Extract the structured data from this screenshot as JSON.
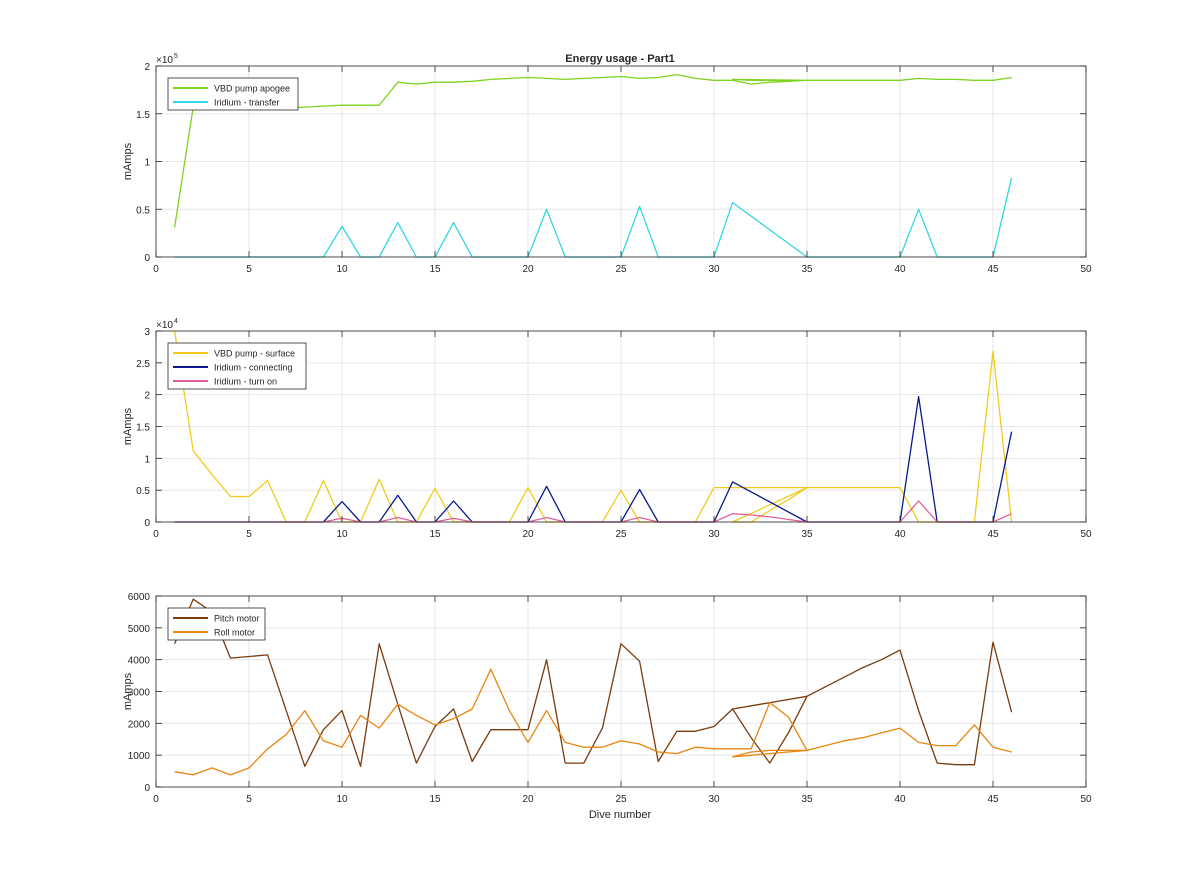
{
  "figure": {
    "title": "Energy usage - Part1",
    "xlabel": "Dive number"
  },
  "chart_data": [
    {
      "type": "line",
      "title": "Energy usage - Part1",
      "xlabel": "",
      "ylabel": "mAmps",
      "xlim": [
        0,
        50
      ],
      "ylim": [
        0,
        200000
      ],
      "xticks": [
        0,
        5,
        10,
        15,
        20,
        25,
        30,
        35,
        40,
        45,
        50
      ],
      "yticks": [
        0,
        50000,
        100000,
        150000,
        200000
      ],
      "ytick_labels": [
        "0",
        "0.5",
        "1",
        "1.5",
        "2"
      ],
      "exponent_label": "×10",
      "exponent_power": "5",
      "grid": true,
      "legend_position": "top-left",
      "series": [
        {
          "name": "VBD pump apogee",
          "color": "#7ed321",
          "x": [
            1,
            2,
            3,
            4,
            5,
            6,
            7,
            8,
            9,
            10,
            11,
            12,
            13,
            14,
            15,
            16,
            17,
            18,
            19,
            20,
            21,
            22,
            23,
            24,
            25,
            26,
            27,
            28,
            29,
            30,
            31,
            32,
            33,
            34,
            35,
            31,
            32,
            33,
            34,
            35,
            36,
            37,
            38,
            39,
            40,
            41,
            42,
            43,
            44,
            45,
            46
          ],
          "y": [
            31000,
            157000,
            158000,
            157000,
            157000,
            157000,
            156000,
            157000,
            158000,
            159000,
            159000,
            159000,
            183000,
            181000,
            183000,
            183000,
            184000,
            186000,
            187000,
            188000,
            187000,
            186000,
            187000,
            188000,
            189000,
            187000,
            188000,
            191000,
            187000,
            185000,
            185000,
            181000,
            183000,
            184000,
            185000,
            186000,
            185000,
            185000,
            184000,
            185000,
            185000,
            185000,
            185000,
            185000,
            185000,
            187000,
            186000,
            186000,
            185000,
            185000,
            188000
          ]
        },
        {
          "name": "Iridium - transfer",
          "color": "#33d6e6",
          "x": [
            1,
            2,
            3,
            4,
            5,
            6,
            7,
            8,
            9,
            10,
            11,
            12,
            13,
            14,
            15,
            16,
            17,
            18,
            19,
            20,
            21,
            22,
            23,
            24,
            25,
            26,
            27,
            28,
            29,
            30,
            31,
            35,
            36,
            37,
            38,
            39,
            40,
            41,
            42,
            43,
            44,
            45,
            46
          ],
          "y": [
            0,
            0,
            0,
            0,
            0,
            0,
            0,
            0,
            0,
            32000,
            0,
            0,
            36000,
            0,
            0,
            36000,
            0,
            0,
            0,
            0,
            50000,
            0,
            0,
            0,
            0,
            53000,
            0,
            0,
            0,
            0,
            57000,
            0,
            0,
            0,
            0,
            0,
            0,
            50000,
            0,
            0,
            0,
            0,
            83000
          ]
        }
      ]
    },
    {
      "type": "line",
      "title": "",
      "xlabel": "",
      "ylabel": "mAmps",
      "xlim": [
        0,
        50
      ],
      "ylim": [
        0,
        30000
      ],
      "xticks": [
        0,
        5,
        10,
        15,
        20,
        25,
        30,
        35,
        40,
        45,
        50
      ],
      "yticks": [
        0,
        5000,
        10000,
        15000,
        20000,
        25000,
        30000
      ],
      "ytick_labels": [
        "0",
        "0.5",
        "1",
        "1.5",
        "2",
        "2.5",
        "3"
      ],
      "exponent_label": "×10",
      "exponent_power": "4",
      "grid": true,
      "legend_position": "top-left",
      "series": [
        {
          "name": "VBD pump - surface",
          "color": "#f2cc1c",
          "x": [
            1,
            2,
            3,
            4,
            5,
            6,
            7,
            8,
            9,
            10,
            11,
            12,
            13,
            14,
            15,
            16,
            17,
            18,
            19,
            20,
            21,
            22,
            23,
            24,
            25,
            26,
            27,
            28,
            29,
            30,
            31,
            32,
            33,
            34,
            35,
            31,
            32,
            33,
            34,
            35,
            36,
            37,
            38,
            39,
            40,
            41,
            42,
            43,
            44,
            45,
            46
          ],
          "y": [
            30000,
            11200,
            7500,
            4000,
            4000,
            6500,
            0,
            0,
            6500,
            0,
            0,
            6700,
            0,
            0,
            5300,
            0,
            0,
            0,
            0,
            5400,
            0,
            0,
            0,
            0,
            5000,
            0,
            0,
            0,
            0,
            5400,
            5400,
            5400,
            5400,
            5400,
            5400,
            0,
            0,
            1800,
            3500,
            5400,
            5400,
            5400,
            5400,
            5400,
            5400,
            0,
            0,
            0,
            0,
            26800,
            0
          ]
        },
        {
          "name": "Iridium - connecting",
          "color": "#0a1a8c",
          "x": [
            1,
            2,
            3,
            4,
            5,
            6,
            7,
            8,
            9,
            10,
            11,
            12,
            13,
            14,
            15,
            16,
            17,
            18,
            19,
            20,
            21,
            22,
            23,
            24,
            25,
            26,
            27,
            28,
            29,
            30,
            31,
            35,
            36,
            37,
            38,
            39,
            40,
            41,
            42,
            43,
            44,
            45,
            46
          ],
          "y": [
            0,
            0,
            0,
            0,
            0,
            0,
            0,
            0,
            0,
            3200,
            0,
            0,
            4200,
            0,
            0,
            3300,
            0,
            0,
            0,
            0,
            5600,
            0,
            0,
            0,
            0,
            5100,
            0,
            0,
            0,
            0,
            6300,
            0,
            0,
            0,
            0,
            0,
            0,
            19700,
            0,
            0,
            0,
            0,
            14200
          ]
        },
        {
          "name": "Iridium - turn on",
          "color": "#e0609e",
          "x": [
            1,
            2,
            3,
            4,
            5,
            6,
            7,
            8,
            9,
            10,
            11,
            12,
            13,
            14,
            15,
            16,
            17,
            18,
            19,
            20,
            21,
            22,
            23,
            24,
            25,
            26,
            27,
            28,
            29,
            30,
            31,
            32,
            33,
            34,
            35,
            36,
            37,
            38,
            39,
            40,
            41,
            42,
            43,
            44,
            45,
            46
          ],
          "y": [
            0,
            0,
            0,
            0,
            0,
            0,
            0,
            0,
            0,
            600,
            0,
            0,
            700,
            0,
            0,
            600,
            0,
            0,
            0,
            0,
            700,
            0,
            0,
            0,
            0,
            700,
            0,
            0,
            0,
            0,
            1300,
            1100,
            800,
            400,
            0,
            0,
            0,
            0,
            0,
            0,
            3300,
            0,
            0,
            0,
            0,
            1300
          ]
        }
      ]
    },
    {
      "type": "line",
      "title": "",
      "xlabel": "Dive number",
      "ylabel": "mAmps",
      "xlim": [
        0,
        50
      ],
      "ylim": [
        0,
        6000
      ],
      "xticks": [
        0,
        5,
        10,
        15,
        20,
        25,
        30,
        35,
        40,
        45,
        50
      ],
      "yticks": [
        0,
        1000,
        2000,
        3000,
        4000,
        5000,
        6000
      ],
      "ytick_labels": [
        "0",
        "1000",
        "2000",
        "3000",
        "4000",
        "5000",
        "6000"
      ],
      "exponent_label": "",
      "exponent_power": "",
      "grid": true,
      "legend_position": "top-left",
      "series": [
        {
          "name": "Pitch motor",
          "color": "#7a3b0e",
          "x": [
            1,
            2,
            3,
            4,
            5,
            6,
            7,
            8,
            9,
            10,
            11,
            12,
            13,
            14,
            15,
            16,
            17,
            18,
            19,
            20,
            21,
            22,
            23,
            24,
            25,
            26,
            27,
            28,
            29,
            30,
            31,
            32,
            33,
            34,
            35,
            31,
            32,
            33,
            34,
            35,
            36,
            37,
            38,
            39,
            40,
            41,
            42,
            43,
            44,
            45,
            46
          ],
          "y": [
            4500,
            5900,
            5500,
            4050,
            4100,
            4150,
            2400,
            650,
            1800,
            2400,
            650,
            4500,
            2600,
            750,
            1900,
            2450,
            800,
            1800,
            1800,
            1800,
            4000,
            750,
            750,
            1850,
            4500,
            3950,
            800,
            1750,
            1750,
            1900,
            2450,
            1550,
            750,
            1700,
            2850,
            2450,
            2550,
            2650,
            2750,
            2850,
            3150,
            3450,
            3750,
            4000,
            4300,
            2400,
            750,
            700,
            700,
            4550,
            2350
          ]
        },
        {
          "name": "Roll motor",
          "color": "#e8860f",
          "x": [
            1,
            2,
            3,
            4,
            5,
            6,
            7,
            8,
            9,
            10,
            11,
            12,
            13,
            14,
            15,
            16,
            17,
            18,
            19,
            20,
            21,
            22,
            23,
            24,
            25,
            26,
            27,
            28,
            29,
            30,
            31,
            32,
            33,
            34,
            35,
            31,
            32,
            33,
            34,
            35,
            36,
            37,
            38,
            39,
            40,
            41,
            42,
            43,
            44,
            45,
            46
          ],
          "y": [
            480,
            380,
            600,
            380,
            600,
            1200,
            1650,
            2400,
            1450,
            1250,
            2250,
            1850,
            2600,
            2250,
            1950,
            2150,
            2450,
            3700,
            2400,
            1400,
            2400,
            1400,
            1250,
            1250,
            1450,
            1350,
            1100,
            1050,
            1250,
            1200,
            1200,
            1200,
            2650,
            2200,
            1150,
            950,
            1100,
            1150,
            1150,
            1150,
            1300,
            1450,
            1550,
            1700,
            1850,
            1400,
            1300,
            1300,
            1950,
            1250,
            1100
          ]
        }
      ]
    }
  ]
}
